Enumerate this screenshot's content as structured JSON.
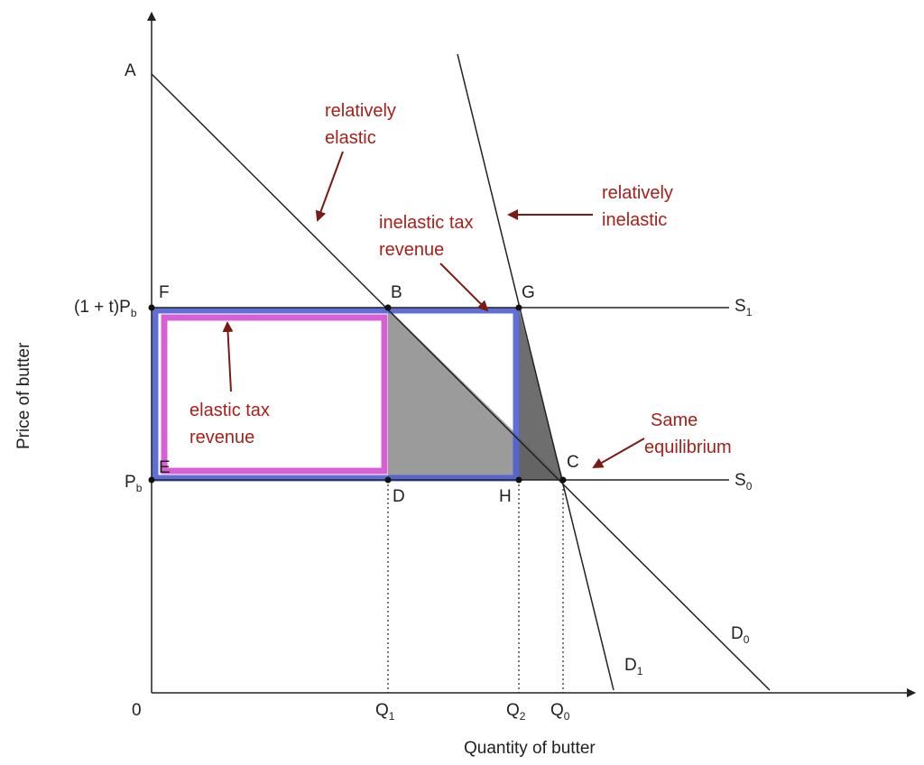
{
  "axes": {
    "x_label": "Quantity of butter",
    "y_label": "Price of butter",
    "origin": "0"
  },
  "points": {
    "A": "A",
    "B": "B",
    "C": "C",
    "D": "D",
    "E": "E",
    "F": "F",
    "G": "G",
    "H": "H"
  },
  "price_labels": {
    "taxed_prefix": "(1 + t)P",
    "taxed_sub": "b",
    "base": "P",
    "base_sub": "b"
  },
  "quantity_labels": {
    "q1": "Q",
    "q1_sub": "1",
    "q2": "Q",
    "q2_sub": "2",
    "q0": "Q",
    "q0_sub": "0"
  },
  "curve_labels": {
    "s1": "S",
    "s1_sub": "1",
    "s0": "S",
    "s0_sub": "0",
    "d0": "D",
    "d0_sub": "0",
    "d1": "D",
    "d1_sub": "1"
  },
  "annotations": {
    "relatively_elastic": [
      "relatively",
      "elastic"
    ],
    "relatively_inelastic": [
      "relatively",
      "inelastic"
    ],
    "inelastic_tax_revenue": [
      "inelastic tax",
      "revenue"
    ],
    "elastic_tax_revenue": [
      "elastic tax",
      "revenue"
    ],
    "same_equilibrium": [
      "Same",
      "equilibrium"
    ]
  },
  "colors": {
    "annotation": "#a8201a",
    "elastic_revenue_outline": "#d44fd0",
    "inelastic_revenue_outline": "#4f5fd0",
    "deadweight_fill": "#8a8a8a",
    "lines": "#222222"
  }
}
